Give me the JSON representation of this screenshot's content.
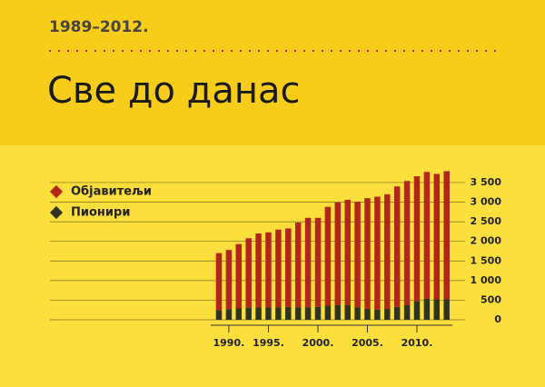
{
  "chart_data": {
    "type": "stacked_bar",
    "subtitle": "1989–2012.",
    "title": "Све до данас",
    "categories": [
      null,
      "1990.",
      null,
      null,
      null,
      "1995.",
      null,
      null,
      null,
      null,
      "2000.",
      null,
      null,
      null,
      null,
      "2005.",
      null,
      null,
      null,
      null,
      "2010.",
      null,
      null,
      null
    ],
    "series": [
      {
        "name": "Пионири",
        "color": "#2f3322",
        "values": [
          250,
          270,
          290,
          310,
          320,
          320,
          320,
          330,
          320,
          320,
          330,
          360,
          380,
          380,
          320,
          280,
          260,
          280,
          330,
          380,
          480,
          540,
          520,
          530
        ]
      },
      {
        "name": "Објавитељи",
        "color": "#b3261c",
        "values": [
          1450,
          1510,
          1640,
          1770,
          1880,
          1910,
          1980,
          2000,
          2160,
          2280,
          2270,
          2520,
          2610,
          2680,
          2690,
          2820,
          2880,
          2920,
          3070,
          3160,
          3180,
          3230,
          3200,
          3260
        ]
      }
    ],
    "ylim": [
      0,
      3800
    ],
    "yticks": [
      0,
      500,
      {
        "value": 1000,
        "label": "1 000"
      },
      {
        "value": 1500,
        "label": "1 500"
      },
      {
        "value": 2000,
        "label": "2 000"
      },
      {
        "value": 2500,
        "label": "2 500"
      },
      {
        "value": 3000,
        "label": "3 000"
      },
      {
        "value": 3500,
        "label": "3 500"
      }
    ],
    "grid": true
  }
}
